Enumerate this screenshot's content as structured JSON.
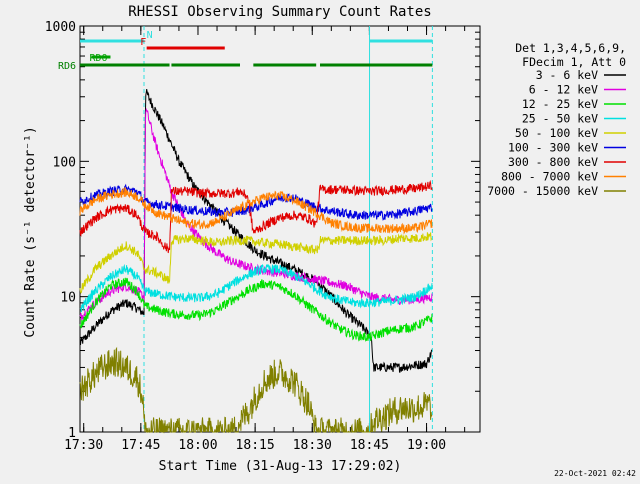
{
  "chart_data": {
    "type": "line",
    "title": "RHESSI Observing Summary Count Rates",
    "ylabel": "Count Rate (s⁻¹ detector⁻¹)",
    "xlabel": "Start Time (31-Aug-13 17:29:02)",
    "yscale": "log",
    "ylim": [
      1,
      1000
    ],
    "xlim_minutes": [
      0,
      105
    ],
    "x_ticks": [
      {
        "m": 0.97,
        "label": "17:30"
      },
      {
        "m": 15.97,
        "label": "17:45"
      },
      {
        "m": 30.97,
        "label": "18:00"
      },
      {
        "m": 45.97,
        "label": "18:15"
      },
      {
        "m": 60.97,
        "label": "18:30"
      },
      {
        "m": 75.97,
        "label": "18:45"
      },
      {
        "m": 90.97,
        "label": "19:00"
      }
    ],
    "y_ticks": [
      {
        "v": 1,
        "label": "1"
      },
      {
        "v": 10,
        "label": "10"
      },
      {
        "v": 100,
        "label": "100"
      },
      {
        "v": 1000,
        "label": "1000"
      }
    ],
    "legend": {
      "position": "right",
      "header": [
        "Det 1,3,4,5,6,9,",
        "FDecim 1, Att 0"
      ]
    },
    "series": [
      {
        "name": "3 - 6 keV",
        "color": "#000000",
        "points": [
          [
            0,
            4.5
          ],
          [
            4,
            6
          ],
          [
            8,
            7.8
          ],
          [
            12,
            9
          ],
          [
            15,
            8.2
          ],
          [
            16.8,
            7.5
          ],
          [
            17.2,
            330
          ],
          [
            22,
            180
          ],
          [
            26,
            100
          ],
          [
            30,
            65
          ],
          [
            34,
            48
          ],
          [
            38,
            36
          ],
          [
            42,
            28
          ],
          [
            46,
            22
          ],
          [
            50,
            19
          ],
          [
            54,
            17
          ],
          [
            58,
            15
          ],
          [
            62,
            13
          ],
          [
            66,
            10
          ],
          [
            70,
            7.5
          ],
          [
            74,
            6
          ],
          [
            76.5,
            5
          ],
          [
            77,
            3
          ],
          [
            84,
            3
          ],
          [
            91,
            3.2
          ],
          [
            92.5,
            4
          ]
        ]
      },
      {
        "name": "6 - 12 keV",
        "color": "#e000e0",
        "points": [
          [
            0,
            7
          ],
          [
            4,
            9
          ],
          [
            8,
            11
          ],
          [
            12,
            12
          ],
          [
            15,
            11
          ],
          [
            16.8,
            10
          ],
          [
            17.2,
            250
          ],
          [
            20,
            130
          ],
          [
            24,
            60
          ],
          [
            28,
            35
          ],
          [
            32,
            26
          ],
          [
            36,
            21
          ],
          [
            40,
            18
          ],
          [
            46,
            16
          ],
          [
            52,
            15
          ],
          [
            58,
            14
          ],
          [
            64,
            13
          ],
          [
            70,
            12
          ],
          [
            76,
            10
          ],
          [
            82,
            9.5
          ],
          [
            88,
            9.5
          ],
          [
            92.5,
            10
          ]
        ]
      },
      {
        "name": "12 - 25 keV",
        "color": "#00e000",
        "points": [
          [
            0,
            6
          ],
          [
            4,
            9
          ],
          [
            8,
            12
          ],
          [
            12,
            13
          ],
          [
            15,
            11
          ],
          [
            17,
            8.5
          ],
          [
            20,
            8
          ],
          [
            24,
            7.5
          ],
          [
            28,
            7.3
          ],
          [
            32,
            7.3
          ],
          [
            36,
            8
          ],
          [
            40,
            9.5
          ],
          [
            44,
            11
          ],
          [
            48,
            12.5
          ],
          [
            52,
            12
          ],
          [
            56,
            10.5
          ],
          [
            60,
            8.5
          ],
          [
            64,
            7
          ],
          [
            68,
            5.8
          ],
          [
            72,
            5.2
          ],
          [
            76,
            5
          ],
          [
            80,
            5.5
          ],
          [
            84,
            5.8
          ],
          [
            88,
            6
          ],
          [
            92.5,
            7
          ]
        ]
      },
      {
        "name": "25 - 50 keV",
        "color": "#00e0e0",
        "points": [
          [
            0,
            8
          ],
          [
            4,
            11
          ],
          [
            8,
            14
          ],
          [
            12,
            16
          ],
          [
            15,
            14
          ],
          [
            17,
            11
          ],
          [
            20,
            10.5
          ],
          [
            24,
            10
          ],
          [
            28,
            9.8
          ],
          [
            32,
            9.8
          ],
          [
            36,
            10.5
          ],
          [
            40,
            12.5
          ],
          [
            44,
            14.5
          ],
          [
            48,
            16
          ],
          [
            52,
            16
          ],
          [
            56,
            14.5
          ],
          [
            60,
            12.5
          ],
          [
            64,
            10.5
          ],
          [
            68,
            9.5
          ],
          [
            72,
            9
          ],
          [
            76,
            9
          ],
          [
            80,
            9.2
          ],
          [
            84,
            9.5
          ],
          [
            88,
            10
          ],
          [
            92.5,
            12
          ]
        ]
      },
      {
        "name": "50 - 100 keV",
        "color": "#d0d000",
        "points": [
          [
            0,
            11
          ],
          [
            4,
            16
          ],
          [
            8,
            20
          ],
          [
            12,
            24
          ],
          [
            15,
            21
          ],
          [
            17,
            16
          ],
          [
            20,
            15
          ],
          [
            22,
            14
          ],
          [
            23.5,
            13
          ],
          [
            24,
            26
          ],
          [
            28,
            27
          ],
          [
            32,
            26
          ],
          [
            36,
            25
          ],
          [
            40,
            26
          ],
          [
            44,
            26
          ],
          [
            48,
            25
          ],
          [
            52,
            24.5
          ],
          [
            56,
            23.5
          ],
          [
            60,
            22.5
          ],
          [
            62.5,
            22
          ],
          [
            63,
            26
          ],
          [
            68,
            26
          ],
          [
            72,
            26
          ],
          [
            76,
            26
          ],
          [
            80,
            26
          ],
          [
            84,
            27
          ],
          [
            88,
            27
          ],
          [
            92.5,
            28
          ]
        ]
      },
      {
        "name": "100 - 300 keV",
        "color": "#0000e0",
        "points": [
          [
            0,
            50
          ],
          [
            4,
            56
          ],
          [
            8,
            60
          ],
          [
            12,
            62
          ],
          [
            15,
            60
          ],
          [
            17,
            50
          ],
          [
            20,
            48
          ],
          [
            24,
            46
          ],
          [
            28,
            44
          ],
          [
            32,
            43
          ],
          [
            36,
            42
          ],
          [
            40,
            42
          ],
          [
            44,
            44
          ],
          [
            48,
            48
          ],
          [
            52,
            54
          ],
          [
            56,
            54
          ],
          [
            60,
            48
          ],
          [
            64,
            44
          ],
          [
            68,
            42
          ],
          [
            72,
            40
          ],
          [
            76,
            40
          ],
          [
            80,
            40
          ],
          [
            84,
            41
          ],
          [
            88,
            43
          ],
          [
            92.5,
            46
          ]
        ]
      },
      {
        "name": "300 - 800 keV",
        "color": "#e00000",
        "points": [
          [
            0,
            30
          ],
          [
            4,
            38
          ],
          [
            8,
            44
          ],
          [
            12,
            45
          ],
          [
            15,
            40
          ],
          [
            17,
            30
          ],
          [
            20,
            28
          ],
          [
            22,
            24
          ],
          [
            23.5,
            22
          ],
          [
            24,
            60
          ],
          [
            28,
            60
          ],
          [
            32,
            58
          ],
          [
            36,
            58
          ],
          [
            40,
            58
          ],
          [
            42,
            60
          ],
          [
            44,
            55
          ],
          [
            45.5,
            30
          ],
          [
            48,
            33
          ],
          [
            52,
            38
          ],
          [
            56,
            40
          ],
          [
            60,
            38
          ],
          [
            62,
            34
          ],
          [
            63,
            62
          ],
          [
            68,
            62
          ],
          [
            72,
            61
          ],
          [
            76,
            60
          ],
          [
            80,
            61
          ],
          [
            84,
            62
          ],
          [
            88,
            63
          ],
          [
            92.5,
            66
          ]
        ]
      },
      {
        "name": "800 - 7000 keV",
        "color": "#ff8000",
        "points": [
          [
            0,
            43
          ],
          [
            4,
            52
          ],
          [
            8,
            57
          ],
          [
            12,
            59
          ],
          [
            15,
            55
          ],
          [
            17,
            48
          ],
          [
            20,
            42
          ],
          [
            24,
            38
          ],
          [
            28,
            35
          ],
          [
            32,
            34
          ],
          [
            36,
            36
          ],
          [
            40,
            42
          ],
          [
            44,
            48
          ],
          [
            48,
            54
          ],
          [
            52,
            56
          ],
          [
            56,
            52
          ],
          [
            60,
            45
          ],
          [
            63,
            40
          ],
          [
            66,
            35
          ],
          [
            70,
            33
          ],
          [
            74,
            32
          ],
          [
            78,
            32
          ],
          [
            82,
            32
          ],
          [
            86,
            32
          ],
          [
            88,
            32
          ],
          [
            92.5,
            35
          ]
        ]
      },
      {
        "name": "7000 - 15000 keV",
        "color": "#808000",
        "points": [
          [
            0,
            2
          ],
          [
            3,
            2.5
          ],
          [
            6,
            3
          ],
          [
            9,
            3.3
          ],
          [
            12,
            3
          ],
          [
            15,
            2.5
          ],
          [
            16.5,
            1.8
          ],
          [
            17,
            1
          ],
          [
            40,
            1
          ],
          [
            44,
            1.4
          ],
          [
            48,
            2.3
          ],
          [
            52,
            2.8
          ],
          [
            56,
            2.4
          ],
          [
            60,
            1.6
          ],
          [
            62,
            1
          ],
          [
            76,
            1
          ],
          [
            77,
            1.2
          ],
          [
            84,
            1.5
          ],
          [
            88,
            1.5
          ],
          [
            92,
            1.6
          ],
          [
            92.5,
            1
          ]
        ]
      }
    ],
    "bars": [
      {
        "label": "N",
        "color": "#30e0e0",
        "label_color": "#30e0e0",
        "segments": [
          [
            0,
            16.8
          ],
          [
            76,
            92.5
          ]
        ],
        "label_at": 17.5,
        "level": 0
      },
      {
        "label": "F",
        "color": "#e00000",
        "label_color": "#e00000",
        "segments": [
          [
            17.5,
            38
          ]
        ],
        "label_at": 15.8,
        "level": 1
      },
      {
        "label": "RD0",
        "color": "#00a000",
        "label_color": "#00a000",
        "segments": [
          [
            3,
            8
          ]
        ],
        "label_at": 2.5,
        "level": 2,
        "label_inside": true
      },
      {
        "label": "RD6",
        "color": "#008000",
        "label_color": "#008000",
        "segments": [
          [
            0,
            23.5
          ],
          [
            24,
            42
          ],
          [
            45.5,
            62
          ],
          [
            63,
            92.5
          ]
        ],
        "label_at": -0.5,
        "level": 3,
        "label_left": true
      }
    ],
    "vlines": [
      {
        "m": 16.8,
        "color": "#30e0e0",
        "style": "dash"
      },
      {
        "m": 76,
        "color": "#30e0e0",
        "style": "solid"
      },
      {
        "m": 92.5,
        "color": "#30e0e0",
        "style": "dash"
      }
    ],
    "footer_date": "22-Oct-2021 02:42"
  }
}
